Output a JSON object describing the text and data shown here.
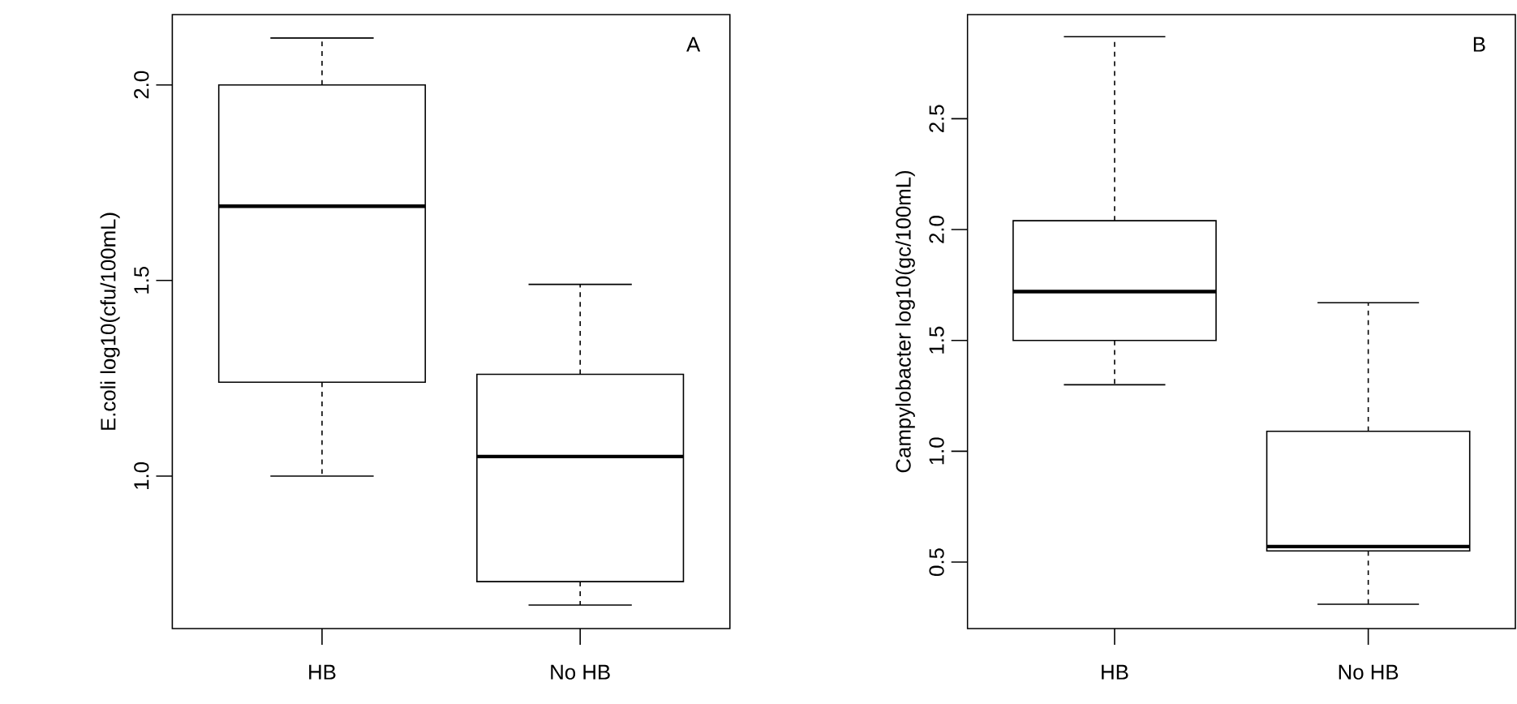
{
  "chart_data": [
    {
      "type": "box",
      "categories": [
        "HB",
        "No HB"
      ],
      "ylabel": "E.coli log10(cfu/100mL)",
      "annotations": [
        "A"
      ],
      "ylim": [
        0.61,
        2.18
      ],
      "yticks": [
        {
          "value": 1,
          "label": "1.0"
        },
        {
          "value": 1.5,
          "label": "1.5"
        },
        {
          "value": 2,
          "label": "2.0"
        }
      ],
      "color": "#000000",
      "boxes": [
        {
          "low": 1.0,
          "q1": 1.24,
          "median": 1.69,
          "q3": 2.0,
          "high": 2.12
        },
        {
          "low": 0.67,
          "q1": 0.73,
          "median": 1.05,
          "q3": 1.26,
          "high": 1.49
        }
      ]
    },
    {
      "type": "box",
      "categories": [
        "HB",
        "No HB"
      ],
      "ylabel": "Campylobacter log10(gc/100mL)",
      "annotations": [
        "B"
      ],
      "ylim": [
        0.2,
        2.97
      ],
      "yticks": [
        {
          "value": 0.5,
          "label": "0.5"
        },
        {
          "value": 1,
          "label": "1.0"
        },
        {
          "value": 1.5,
          "label": "1.5"
        },
        {
          "value": 2,
          "label": "2.0"
        },
        {
          "value": 2.5,
          "label": "2.5"
        }
      ],
      "color": "#000000",
      "boxes": [
        {
          "low": 1.3,
          "q1": 1.5,
          "median": 1.72,
          "q3": 2.04,
          "high": 2.87
        },
        {
          "low": 0.31,
          "q1": 0.55,
          "median": 0.57,
          "q3": 1.09,
          "high": 1.67
        }
      ]
    }
  ]
}
